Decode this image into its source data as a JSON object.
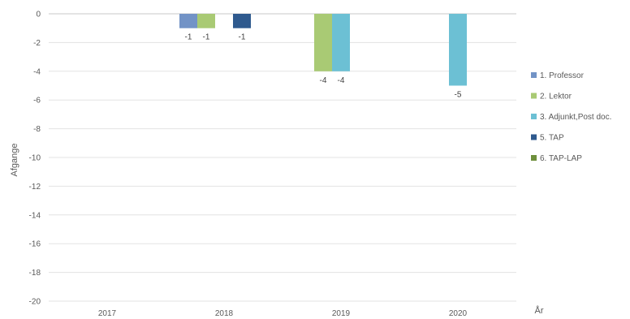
{
  "chart_data": {
    "type": "bar",
    "title": "",
    "xlabel": "År",
    "ylabel": "Afgange",
    "categories": [
      "2017",
      "2018",
      "2019",
      "2020"
    ],
    "ylim": [
      -20,
      0
    ],
    "yticks": [
      0,
      -2,
      -4,
      -6,
      -8,
      -10,
      -12,
      -14,
      -16,
      -18,
      -20
    ],
    "grid": true,
    "legend_position": "right",
    "series": [
      {
        "name": "1. Professor",
        "color": "#7293c6",
        "values": [
          null,
          -1,
          null,
          null
        ]
      },
      {
        "name": "2. Lektor",
        "color": "#a9ca74",
        "values": [
          null,
          -1,
          -4,
          null
        ]
      },
      {
        "name": "3. Adjunkt,Post doc.",
        "color": "#6cc0d4",
        "values": [
          null,
          null,
          -4,
          -5
        ]
      },
      {
        "name": "5. TAP",
        "color": "#2f5a8e",
        "values": [
          null,
          -1,
          null,
          null
        ]
      },
      {
        "name": "6. TAP-LAP",
        "color": "#6e8f3c",
        "values": [
          null,
          null,
          null,
          null
        ]
      }
    ]
  }
}
